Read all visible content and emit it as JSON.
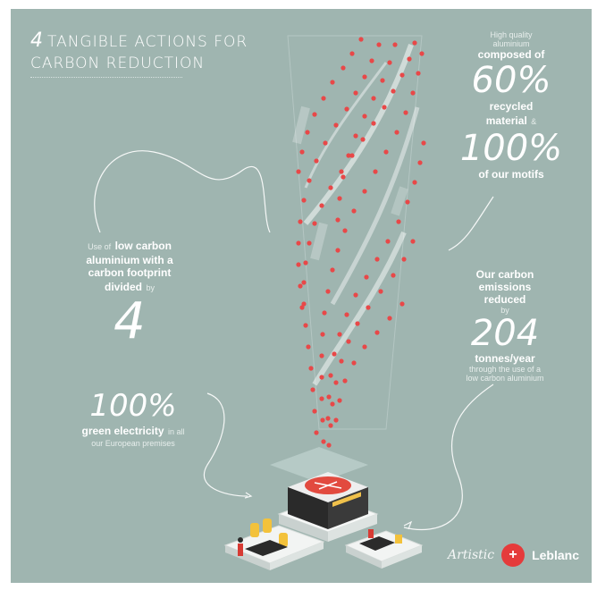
{
  "title": {
    "number": "4",
    "line1": "TANGIBLE ACTIONS FOR",
    "line2": "CARBON REDUCTION"
  },
  "block_top_right": {
    "small1": "High quality",
    "small2": "aluminium",
    "bold1": "composed of",
    "big1": "60%",
    "bold2": "recycled",
    "bold3": "material",
    "small3": "&",
    "big2": "100%",
    "bold4": "of our motifs"
  },
  "block_left": {
    "small1": "Use of",
    "bold1": "low carbon",
    "bold2": "aluminium with a",
    "bold3": "carbon footprint",
    "bold4": "divided",
    "small2": "by",
    "big": "4"
  },
  "block_right": {
    "bold1": "Our carbon",
    "bold2": "emissions",
    "bold3": "reduced",
    "small1": "by",
    "big": "204",
    "bold4": "tonnes/year",
    "small2": "through the use of a",
    "small3": "low carbon aluminium"
  },
  "block_bottom_left": {
    "big": "100%",
    "bold1": "green electricity",
    "small1": "in all",
    "small2": "our European premises"
  },
  "logos": {
    "artistic": "Artistic",
    "leblanc": "Leblanc",
    "mark": "+"
  },
  "colors": {
    "background": "#9fb5b0",
    "accent": "#e53b3b",
    "white": "#ffffff"
  }
}
